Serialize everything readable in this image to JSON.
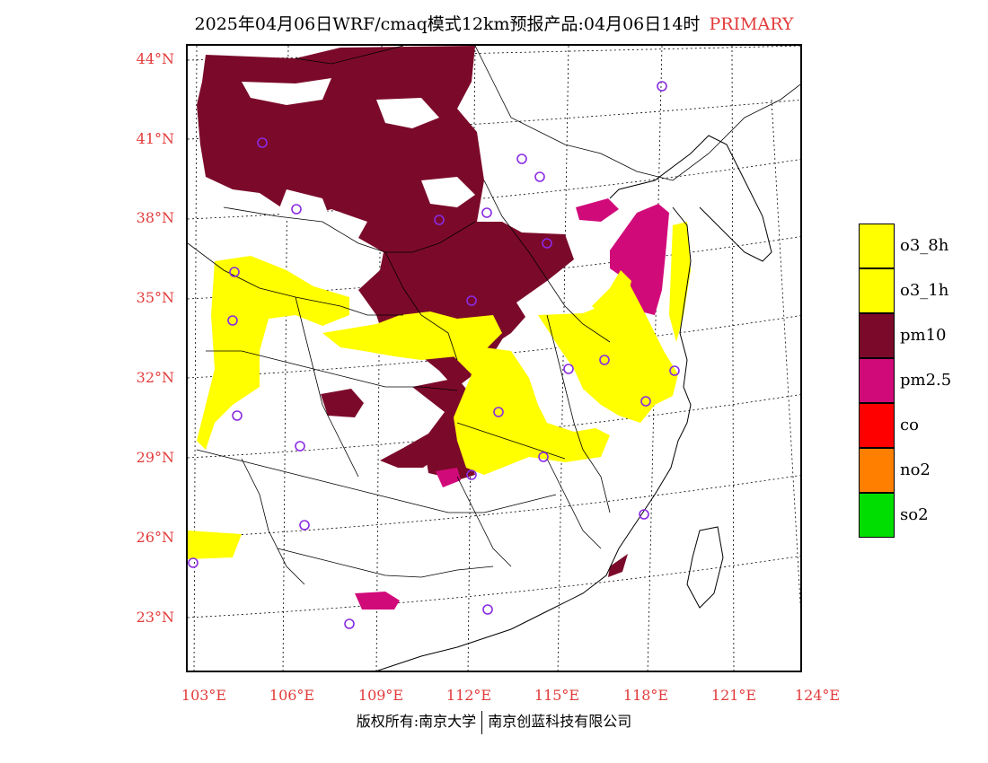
{
  "title": {
    "main": "2025年04月06日WRF/cmaq模式12km预报产品:04月06日14时",
    "tag": "PRIMARY"
  },
  "colors": {
    "o3_8h": "#ffff00",
    "o3_1h": "#ffff00",
    "pm10": "#7b0a2a",
    "pm25": "#d10a7a",
    "co": "#ff0000",
    "no2": "#ff7f00",
    "so2": "#00dd00",
    "station": "#8a2be2",
    "axis_label": "#e23b3b"
  },
  "axes": {
    "lat_labels": [
      "44°N",
      "41°N",
      "38°N",
      "35°N",
      "32°N",
      "29°N",
      "26°N",
      "23°N"
    ],
    "lon_labels": [
      "103°E",
      "106°E",
      "109°E",
      "112°E",
      "115°E",
      "118°E",
      "121°E",
      "124°E"
    ]
  },
  "legend": [
    {
      "key": "o3_8h",
      "label": "o3_8h",
      "color": "#ffff00"
    },
    {
      "key": "o3_1h",
      "label": "o3_1h",
      "color": "#ffff00"
    },
    {
      "key": "pm10",
      "label": "pm10",
      "color": "#7b0a2a"
    },
    {
      "key": "pm25",
      "label": "pm2.5",
      "color": "#d10a7a"
    },
    {
      "key": "co",
      "label": "co",
      "color": "#ff0000"
    },
    {
      "key": "no2",
      "label": "no2",
      "color": "#ff7f00"
    },
    {
      "key": "so2",
      "label": "so2",
      "color": "#00dd00"
    }
  ],
  "footer": {
    "left": "版权所有:南京大学",
    "right": "南京创蓝科技有限公司"
  }
}
